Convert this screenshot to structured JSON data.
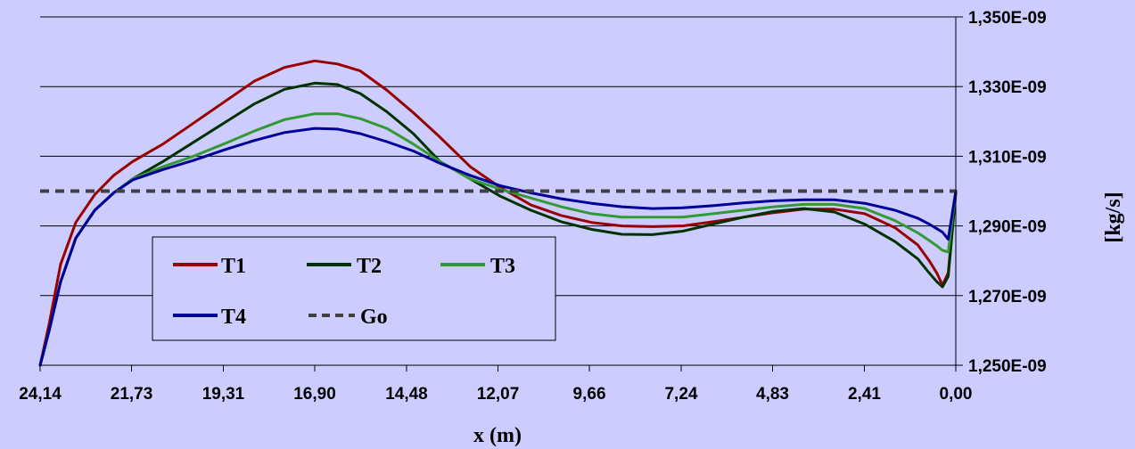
{
  "chart_data": {
    "type": "line",
    "xlabel": "x (m)",
    "ylabel": "[kg/s]",
    "x_reversed": true,
    "xlim": [
      24.14,
      0.0
    ],
    "ylim": [
      1.25e-09,
      1.35e-09
    ],
    "x_ticks": [
      24.14,
      21.73,
      19.31,
      16.9,
      14.48,
      12.07,
      9.66,
      7.24,
      4.83,
      2.41,
      0.0
    ],
    "x_tick_labels": [
      "24,14",
      "21,73",
      "19,31",
      "16,90",
      "14,48",
      "12,07",
      "9,66",
      "7,24",
      "4,83",
      "2,41",
      "0,00"
    ],
    "y_ticks": [
      1.25e-09,
      1.27e-09,
      1.29e-09,
      1.31e-09,
      1.33e-09,
      1.35e-09
    ],
    "y_tick_labels": [
      "1,250E-09",
      "1,270E-09",
      "1,290E-09",
      "1,310E-09",
      "1,330E-09",
      "1,350E-09"
    ],
    "grid": "horizontal",
    "y_axis_side": "right",
    "legend_placement": "lower-left",
    "series": [
      {
        "name": "T1",
        "color": "#990000",
        "dash": "solid",
        "x": [
          24.14,
          23.9,
          23.6,
          23.2,
          22.7,
          22.2,
          21.7,
          20.9,
          20.1,
          19.3,
          18.5,
          17.7,
          16.9,
          16.3,
          15.7,
          15.0,
          14.3,
          13.6,
          12.8,
          12.0,
          11.2,
          10.4,
          9.6,
          8.8,
          8.0,
          7.2,
          6.4,
          5.6,
          4.8,
          4.0,
          3.2,
          2.4,
          1.6,
          1.0,
          0.7,
          0.5,
          0.35,
          0.2,
          0.0
        ],
        "y": [
          1.25e-09,
          1.262e-09,
          1.279e-09,
          1.291e-09,
          1.299e-09,
          1.3045e-09,
          1.3085e-09,
          1.3135e-09,
          1.3195e-09,
          1.3255e-09,
          1.3315e-09,
          1.3355e-09,
          1.3374e-09,
          1.3365e-09,
          1.3345e-09,
          1.329e-09,
          1.3225e-09,
          1.3155e-09,
          1.307e-09,
          1.301e-09,
          1.296e-09,
          1.293e-09,
          1.291e-09,
          1.29e-09,
          1.2898e-09,
          1.29e-09,
          1.2912e-09,
          1.2925e-09,
          1.2938e-09,
          1.2948e-09,
          1.2948e-09,
          1.2935e-09,
          1.2895e-09,
          1.2845e-09,
          1.28e-09,
          1.2765e-09,
          1.273e-09,
          1.2765e-09,
          1.3e-09
        ]
      },
      {
        "name": "T2",
        "color": "#003300",
        "dash": "solid",
        "x": [
          24.14,
          23.9,
          23.6,
          23.2,
          22.7,
          22.2,
          21.7,
          20.9,
          20.1,
          19.3,
          18.5,
          17.7,
          16.9,
          16.3,
          15.7,
          15.0,
          14.3,
          13.6,
          12.8,
          12.0,
          11.2,
          10.4,
          9.6,
          8.8,
          8.0,
          7.2,
          6.4,
          5.6,
          4.8,
          4.0,
          3.2,
          2.4,
          1.6,
          1.0,
          0.7,
          0.5,
          0.35,
          0.2,
          0.0
        ],
        "y": [
          1.25e-09,
          1.26e-09,
          1.274e-09,
          1.2865e-09,
          1.2945e-09,
          1.2995e-09,
          1.3035e-09,
          1.3085e-09,
          1.314e-09,
          1.3195e-09,
          1.325e-09,
          1.3292e-09,
          1.331e-09,
          1.3306e-09,
          1.328e-09,
          1.3228e-09,
          1.3165e-09,
          1.3085e-09,
          1.3035e-09,
          1.2985e-09,
          1.2945e-09,
          1.2912e-09,
          1.289e-09,
          1.2876e-09,
          1.2875e-09,
          1.2885e-09,
          1.2905e-09,
          1.2925e-09,
          1.2942e-09,
          1.295e-09,
          1.294e-09,
          1.2905e-09,
          1.2855e-09,
          1.2805e-09,
          1.2765e-09,
          1.274e-09,
          1.2725e-09,
          1.2755e-09,
          1.2995e-09
        ]
      },
      {
        "name": "T3",
        "color": "#339933",
        "dash": "solid",
        "x": [
          24.14,
          23.9,
          23.6,
          23.2,
          22.7,
          22.2,
          21.7,
          20.9,
          20.1,
          19.3,
          18.5,
          17.7,
          16.9,
          16.3,
          15.7,
          15.0,
          14.3,
          13.6,
          12.8,
          12.0,
          11.2,
          10.4,
          9.6,
          8.8,
          8.0,
          7.2,
          6.4,
          5.6,
          4.8,
          4.0,
          3.2,
          2.4,
          1.6,
          1.0,
          0.7,
          0.5,
          0.35,
          0.2,
          0.0
        ],
        "y": [
          1.25e-09,
          1.26e-09,
          1.274e-09,
          1.2865e-09,
          1.2945e-09,
          1.2995e-09,
          1.3035e-09,
          1.307e-09,
          1.31e-09,
          1.3135e-09,
          1.3172e-09,
          1.3205e-09,
          1.3222e-09,
          1.3222e-09,
          1.3208e-09,
          1.318e-09,
          1.3135e-09,
          1.3085e-09,
          1.3035e-09,
          1.3005e-09,
          1.298e-09,
          1.2955e-09,
          1.2935e-09,
          1.2925e-09,
          1.2925e-09,
          1.2925e-09,
          1.2935e-09,
          1.2945e-09,
          1.2955e-09,
          1.2962e-09,
          1.2962e-09,
          1.295e-09,
          1.2915e-09,
          1.288e-09,
          1.2858e-09,
          1.2843e-09,
          1.283e-09,
          1.2825e-09,
          1.3e-09
        ]
      },
      {
        "name": "T4",
        "color": "#000099",
        "dash": "solid",
        "x": [
          24.14,
          23.9,
          23.6,
          23.2,
          22.7,
          22.2,
          21.7,
          20.9,
          20.1,
          19.3,
          18.5,
          17.7,
          16.9,
          16.3,
          15.7,
          15.0,
          14.3,
          13.6,
          12.8,
          12.0,
          11.2,
          10.4,
          9.6,
          8.8,
          8.0,
          7.2,
          6.4,
          5.6,
          4.8,
          4.0,
          3.2,
          2.4,
          1.6,
          1.0,
          0.7,
          0.5,
          0.35,
          0.2,
          0.0
        ],
        "y": [
          1.25e-09,
          1.26e-09,
          1.274e-09,
          1.2865e-09,
          1.2945e-09,
          1.2995e-09,
          1.3032e-09,
          1.3062e-09,
          1.3088e-09,
          1.3118e-09,
          1.3145e-09,
          1.3168e-09,
          1.318e-09,
          1.3178e-09,
          1.3165e-09,
          1.3142e-09,
          1.3115e-09,
          1.308e-09,
          1.3045e-09,
          1.3015e-09,
          1.2995e-09,
          1.2978e-09,
          1.2965e-09,
          1.2955e-09,
          1.295e-09,
          1.2952e-09,
          1.2958e-09,
          1.2966e-09,
          1.2972e-09,
          1.2975e-09,
          1.2975e-09,
          1.2965e-09,
          1.2945e-09,
          1.2922e-09,
          1.2905e-09,
          1.2892e-09,
          1.2882e-09,
          1.2862e-09,
          1.3e-09
        ]
      },
      {
        "name": "Go",
        "color": "#404040",
        "dash": "dashed",
        "x": [
          24.14,
          0.0
        ],
        "y": [
          1.3e-09,
          1.3e-09
        ]
      }
    ]
  }
}
